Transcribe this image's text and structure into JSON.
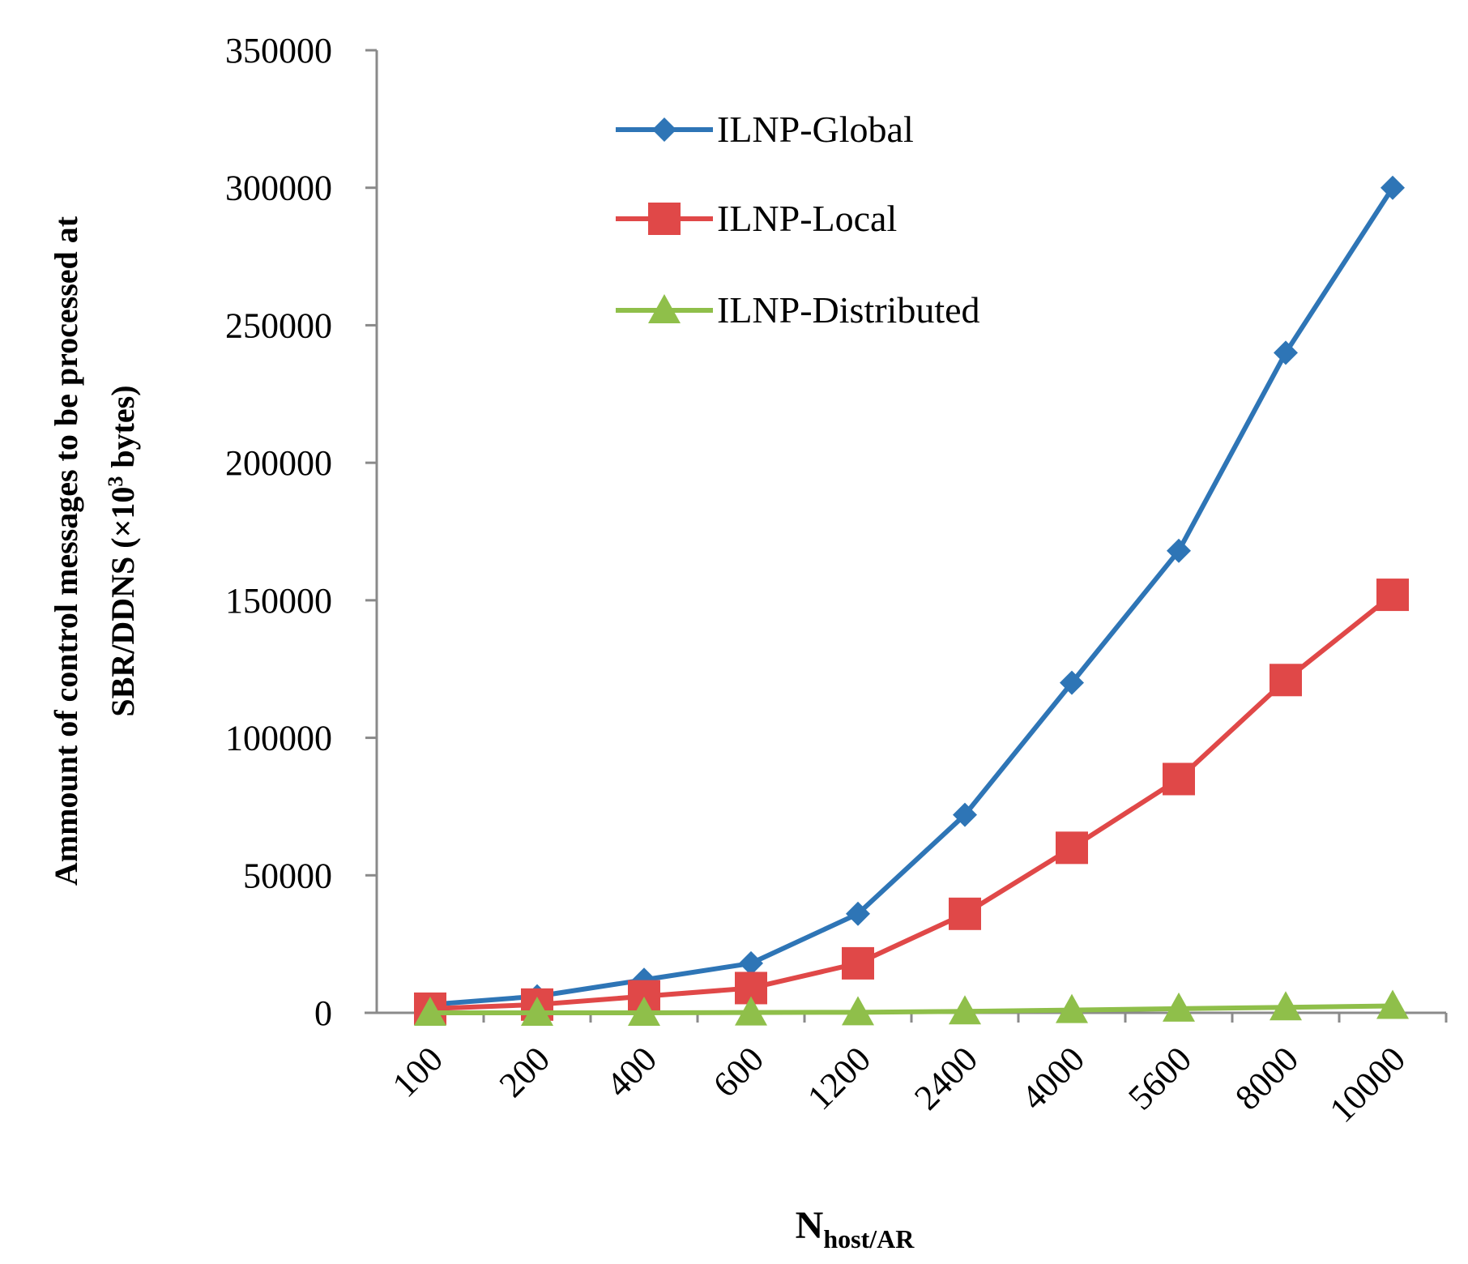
{
  "chart_data": {
    "type": "line",
    "categories": [
      "100",
      "200",
      "400",
      "600",
      "1200",
      "2400",
      "4000",
      "5600",
      "8000",
      "10000"
    ],
    "series": [
      {
        "name": "ILNP-Global",
        "color": "#2e75b6",
        "marker": "diamond",
        "values": [
          3000,
          6000,
          12000,
          18000,
          36000,
          72000,
          120000,
          168000,
          240000,
          300000
        ]
      },
      {
        "name": "ILNP-Local",
        "color": "#e04848",
        "marker": "square",
        "values": [
          1500,
          3000,
          6000,
          9000,
          18000,
          36000,
          60000,
          85000,
          121000,
          152000
        ]
      },
      {
        "name": "ILNP-Distributed",
        "color": "#8fbf4a",
        "marker": "triangle",
        "values": [
          0,
          0,
          0,
          100,
          200,
          500,
          1000,
          1500,
          2000,
          2500
        ]
      }
    ],
    "ylim": [
      0,
      350000
    ],
    "yticks": [
      "0",
      "50000",
      "100000",
      "150000",
      "200000",
      "250000",
      "300000",
      "350000"
    ],
    "ylabel_line1": "Ammount of control  messages to be processed at",
    "ylabel_line2_pre": "SBR/DDNS (×10",
    "ylabel_line2_sup": "3",
    "ylabel_line2_post": " bytes)",
    "xlabel_main": "N",
    "xlabel_sub": "host/AR",
    "legend_position": "top-center"
  }
}
